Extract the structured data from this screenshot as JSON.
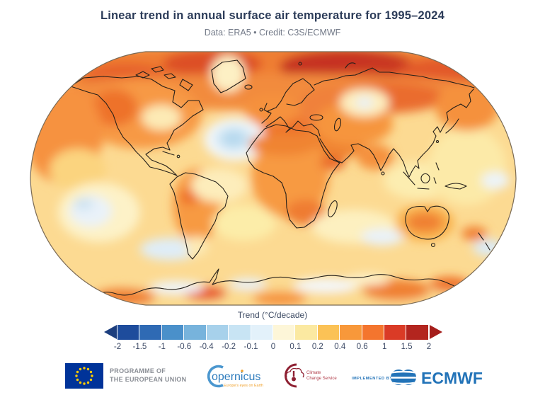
{
  "header": {
    "title": "Linear trend in annual surface air temperature for 1995–2024",
    "subtitle": "Data: ERA5 • Credit: C3S/ECMWF"
  },
  "map": {
    "kind": "filled-contour world map of temperature trend",
    "units": "°C/decade"
  },
  "legend": {
    "label": "Trend (°C/decade)",
    "ticks": [
      "-2",
      "-1.5",
      "-1",
      "-0.6",
      "-0.4",
      "-0.2",
      "-0.1",
      "0",
      "0.1",
      "0.2",
      "0.4",
      "0.6",
      "1",
      "1.5",
      "2"
    ],
    "segment_colors": [
      "#1e4c9c",
      "#2f6ab4",
      "#4a90ca",
      "#77b3dc",
      "#a7d1eb",
      "#c8e4f4",
      "#e3f1fa",
      "#fdf6d8",
      "#fbe9a1",
      "#fbc256",
      "#f8983a",
      "#f4752e",
      "#da3b26",
      "#b3251f"
    ],
    "arrow_left_color": "#1c3e7e",
    "arrow_right_color": "#a51e1b"
  },
  "footer": {
    "eu_line1": "PROGRAMME OF",
    "eu_line2": "THE EUROPEAN UNION",
    "copernicus_name": "opernicus",
    "copernicus_tagline": "Europe's eyes on Earth",
    "c3s_line1": "Climate",
    "c3s_line2": "Change Service",
    "implemented_by": "IMPLEMENTED BY",
    "ecmwf": "ECMWF",
    "brand_blue": "#2273b8",
    "eu_blue": "#003399",
    "eu_star_yellow": "#ffcc00",
    "c3s_maroon": "#8e2032"
  }
}
